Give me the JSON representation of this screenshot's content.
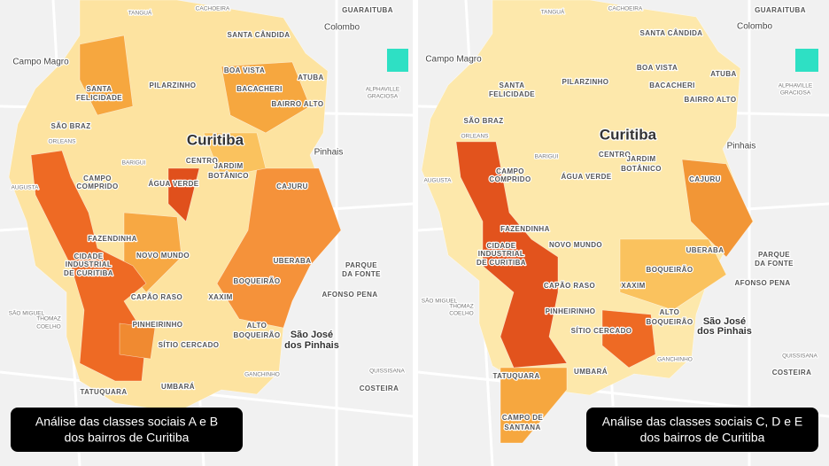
{
  "left_panel": {
    "labels": [
      "TANGUÁ",
      "CACHOEIRA",
      "GUARAITUBA",
      "SANTA CÂNDIDA",
      "Colombo",
      "Campo Magro",
      "BOA VISTA",
      "PILARZINHO",
      "BACACHERI",
      "ATUBA",
      "SANTA",
      "FELICIDADE",
      "BAIRRO ALTO",
      "ALPHAVILLE",
      "GRACIOSA",
      "SÃO BRAZ",
      "Curitiba",
      "ORLEANS",
      "Pinhais",
      "BARIGUI",
      "CENTRO",
      "JARDIM",
      "BOTÂNICO",
      "CAMPO",
      "COMPRIDO",
      "ÁGUA VERDE",
      "CAJURU",
      "AUGUSTA",
      "FAZENDINHA",
      "NOVO MUNDO",
      "CIDADE",
      "INDUSTRIAL",
      "DE CURITIBA",
      "UBERABA",
      "PARQUE",
      "DA FONTE",
      "BOQUEIRÃO",
      "AFONSO PENA",
      "CAPÃO RASO",
      "XAXIM",
      "SÃO MIGUEL",
      "PINHEIRINHO",
      "ALTO",
      "BOQUEIRÃO",
      "São José",
      "dos Pinhais",
      "THOMAZ",
      "COELHO",
      "SÍTIO CERCADO",
      "GANCHINHO",
      "QUISSISANA",
      "TATUQUARA",
      "UMBARÁ",
      "COSTEIRA"
    ],
    "caption": [
      "Análise das classes sociais A e B",
      "dos bairros de Curitiba"
    ]
  },
  "right_panel": {
    "labels": [
      "TANGUÁ",
      "CACHOEIRA",
      "GUARAITUBA",
      "SANTA CÂNDIDA",
      "Colombo",
      "Campo Magro",
      "BOA VISTA",
      "PILARZINHO",
      "BACACHERI",
      "ATUBA",
      "SANTA",
      "FELICIDADE",
      "BAIRRO ALTO",
      "ALPHAVILLE",
      "GRACIOSA",
      "SÃO BRAZ",
      "Curitiba",
      "ORLEANS",
      "Pinhais",
      "BARIGUI",
      "CENTRO",
      "JARDIM",
      "BOTÂNICO",
      "CAMPO",
      "COMPRIDO",
      "ÁGUA VERDE",
      "CAJURU",
      "AUGUSTA",
      "FAZENDINHA",
      "NOVO MUNDO",
      "CIDADE",
      "INDUSTRIAL",
      "DE CURITIBA",
      "UBERABA",
      "PARQUE",
      "DA FONTE",
      "BOQUEIRÃO",
      "AFONSO PENA",
      "CAPÃO RASO",
      "XAXIM",
      "SÃO MIGUEL",
      "PINHEIRINHO",
      "ALTO",
      "BOQUEIRÃO",
      "São José",
      "dos Pinhais",
      "THOMAZ",
      "COELHO",
      "SÍTIO CERCADO",
      "GANCHINHO",
      "QUISSISANA",
      "TATUQUARA",
      "UMBARÁ",
      "COSTEIRA",
      "CAMPO DE",
      "SANTANA"
    ],
    "caption": [
      "Análise das classes sociais C, D e E",
      "dos bairros de Curitiba"
    ]
  }
}
